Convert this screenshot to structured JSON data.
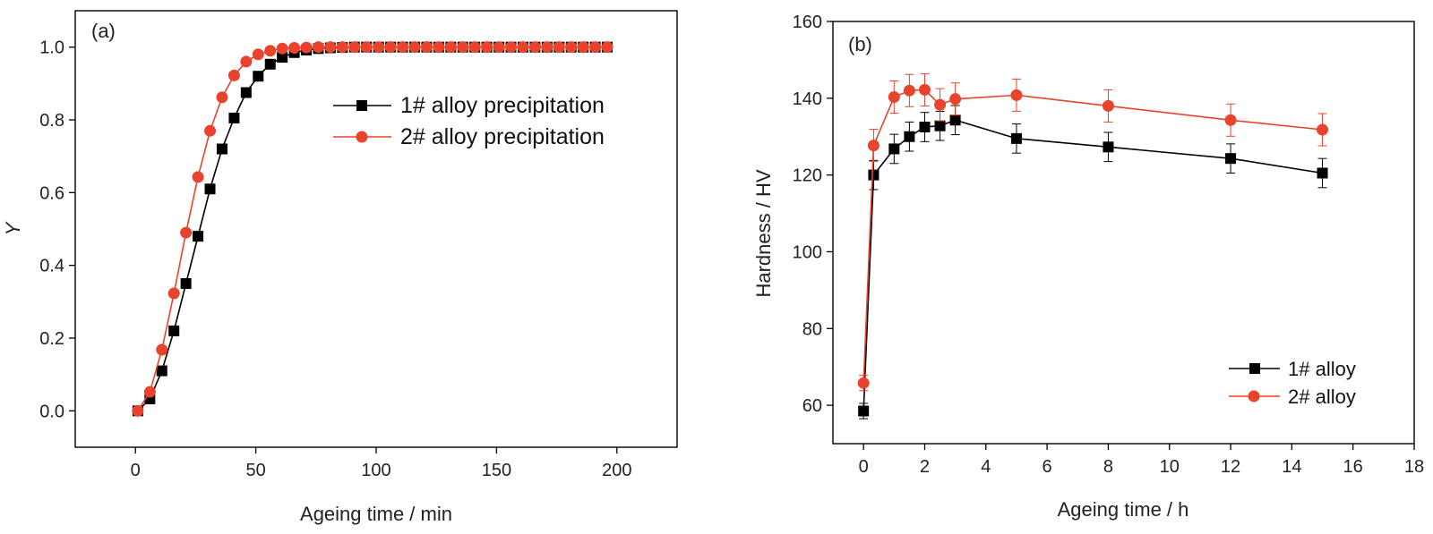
{
  "colors": {
    "series1": "#000000",
    "series2": "#e8432c",
    "axis": "#000000"
  },
  "chart_data": [
    {
      "type": "line",
      "panel_label": "(a)",
      "xlabel": "Ageing time / min",
      "ylabel": "Y",
      "xlim": [
        -25,
        225
      ],
      "ylim": [
        -0.1,
        1.1
      ],
      "xticks": [
        0,
        50,
        100,
        150,
        200
      ],
      "yticks": [
        0.0,
        0.2,
        0.4,
        0.6,
        0.8,
        1.0
      ],
      "xtick_labels": [
        "0",
        "50",
        "100",
        "150",
        "200"
      ],
      "ytick_labels": [
        "0.0",
        "0.2",
        "0.4",
        "0.6",
        "0.8",
        "1.0"
      ],
      "legend_position": "top-right",
      "series": [
        {
          "name": "1# alloy precipitation",
          "marker": "square",
          "x": [
            1,
            6,
            11,
            16,
            21,
            26,
            31,
            36,
            41,
            46,
            51,
            56,
            61,
            66,
            71,
            76,
            81,
            86,
            91,
            96,
            101,
            106,
            111,
            116,
            121,
            126,
            131,
            136,
            141,
            146,
            151,
            156,
            161,
            166,
            171,
            176,
            181,
            186,
            191,
            196
          ],
          "y": [
            0.0,
            0.033,
            0.11,
            0.22,
            0.35,
            0.48,
            0.61,
            0.72,
            0.805,
            0.875,
            0.92,
            0.953,
            0.972,
            0.985,
            0.992,
            0.996,
            0.998,
            0.999,
            1.0,
            1.0,
            1.0,
            1.0,
            1.0,
            1.0,
            1.0,
            1.0,
            1.0,
            1.0,
            1.0,
            1.0,
            1.0,
            1.0,
            1.0,
            1.0,
            1.0,
            1.0,
            1.0,
            1.0,
            1.0,
            1.0
          ]
        },
        {
          "name": "2# alloy precipitation",
          "marker": "circle",
          "x": [
            1,
            6,
            11,
            16,
            21,
            26,
            31,
            36,
            41,
            46,
            51,
            56,
            61,
            66,
            71,
            76,
            81,
            86,
            91,
            96,
            101,
            106,
            111,
            116,
            121,
            126,
            131,
            136,
            141,
            146,
            151,
            156,
            161,
            166,
            171,
            176,
            181,
            186,
            191,
            196
          ],
          "y": [
            0.0,
            0.052,
            0.168,
            0.323,
            0.49,
            0.643,
            0.77,
            0.862,
            0.922,
            0.96,
            0.98,
            0.99,
            0.996,
            0.998,
            0.999,
            1.0,
            1.0,
            1.0,
            1.0,
            1.0,
            1.0,
            1.0,
            1.0,
            1.0,
            1.0,
            1.0,
            1.0,
            1.0,
            1.0,
            1.0,
            1.0,
            1.0,
            1.0,
            1.0,
            1.0,
            1.0,
            1.0,
            1.0,
            1.0,
            1.0
          ]
        }
      ]
    },
    {
      "type": "line",
      "panel_label": "(b)",
      "xlabel": "Ageing time / h",
      "ylabel": "Hardness / HV",
      "xlim": [
        -1,
        18
      ],
      "ylim": [
        50,
        160
      ],
      "xticks": [
        0,
        2,
        4,
        6,
        8,
        10,
        12,
        14,
        16,
        18
      ],
      "yticks": [
        60,
        80,
        100,
        120,
        140,
        160
      ],
      "xtick_labels": [
        "0",
        "2",
        "4",
        "6",
        "8",
        "10",
        "12",
        "14",
        "16",
        "18"
      ],
      "ytick_labels": [
        "60",
        "80",
        "100",
        "120",
        "140",
        "160"
      ],
      "legend_position": "bottom-right",
      "series": [
        {
          "name": "1# alloy",
          "marker": "square",
          "x": [
            0,
            0.33,
            1,
            1.5,
            2,
            2.5,
            3,
            5,
            8,
            12,
            15
          ],
          "y": [
            58.5,
            120,
            126.8,
            130,
            132.5,
            132.8,
            134.3,
            129.5,
            127.3,
            124.3,
            120.5
          ],
          "err": [
            2,
            3.8,
            3.8,
            3.8,
            3.8,
            3.8,
            3.8,
            3.8,
            3.8,
            3.8,
            3.8
          ]
        },
        {
          "name": "2# alloy",
          "marker": "circle",
          "x": [
            0,
            0.33,
            1,
            1.5,
            2,
            2.5,
            3,
            5,
            8,
            12,
            15
          ],
          "y": [
            65.8,
            127.7,
            140.3,
            142,
            142.2,
            138.3,
            139.8,
            140.8,
            138,
            134.3,
            131.8
          ],
          "err": [
            2,
            4.2,
            4.2,
            4.2,
            4.2,
            4.2,
            4.2,
            4.2,
            4.2,
            4.2,
            4.2
          ]
        }
      ]
    }
  ]
}
